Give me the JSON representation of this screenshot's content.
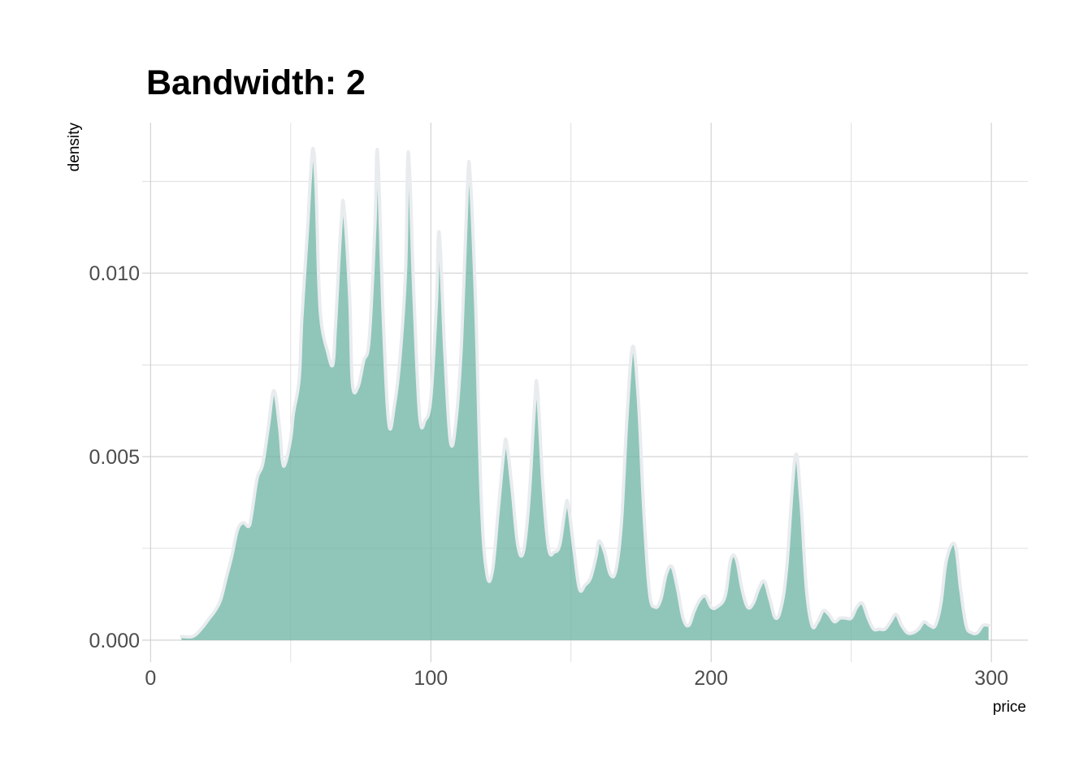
{
  "chart_data": {
    "type": "area",
    "title": "Bandwidth: 2",
    "xlabel": "price",
    "ylabel": "density",
    "xlim": [
      -3,
      313
    ],
    "ylim": [
      -0.0006,
      0.0141
    ],
    "x_ticks": [
      0,
      100,
      200,
      300
    ],
    "x_tick_labels": [
      "0",
      "100",
      "200",
      "300"
    ],
    "y_ticks": [
      0,
      0.005,
      0.01
    ],
    "y_tick_labels": [
      "0.000",
      "0.005",
      "0.010"
    ],
    "grid": true,
    "legend": "none",
    "fill_color": "#69b3a2",
    "line_color": "#e9ecef",
    "series": [
      {
        "x": [
          11,
          15,
          18,
          21,
          23,
          25,
          27,
          29,
          31,
          33,
          35,
          36,
          38,
          40,
          42,
          44,
          46,
          47,
          48,
          50,
          51,
          53,
          54,
          56,
          57,
          58,
          59,
          60,
          61,
          63,
          65,
          66,
          68,
          69,
          71,
          72,
          74,
          76,
          78,
          80,
          81,
          83,
          85,
          87,
          89,
          91,
          92,
          94,
          96,
          98,
          100,
          102,
          103,
          105,
          107,
          109,
          111,
          113,
          114,
          116,
          118,
          120,
          122,
          124,
          126,
          127,
          129,
          131,
          133,
          135,
          137,
          138,
          140,
          142,
          144,
          146,
          148,
          149,
          151,
          153,
          155,
          157,
          159,
          160,
          162,
          164,
          166,
          168,
          170,
          172,
          174,
          176,
          178,
          180,
          182,
          184,
          186,
          188,
          190,
          192,
          194,
          196,
          198,
          200,
          202,
          205,
          207,
          209,
          211,
          213,
          215,
          217,
          219,
          221,
          223,
          225,
          227,
          230,
          232,
          234,
          236,
          238,
          240,
          242,
          244,
          246,
          248,
          250,
          252,
          254,
          256,
          258,
          260,
          262,
          264,
          266,
          268,
          270,
          272,
          274,
          276,
          278,
          280,
          282,
          284,
          287,
          289,
          291,
          293,
          295,
          297,
          299
        ],
        "y": [
          0.0001,
          0.0001,
          0.0003,
          0.0006,
          0.0008,
          0.0011,
          0.0017,
          0.0023,
          0.003,
          0.0032,
          0.0031,
          0.0034,
          0.0044,
          0.0048,
          0.0058,
          0.0068,
          0.0058,
          0.0049,
          0.0048,
          0.0055,
          0.0062,
          0.0071,
          0.0088,
          0.0112,
          0.0126,
          0.0134,
          0.0124,
          0.0098,
          0.0086,
          0.0079,
          0.0075,
          0.0086,
          0.0114,
          0.0118,
          0.0094,
          0.007,
          0.0069,
          0.0076,
          0.0082,
          0.0112,
          0.0133,
          0.0088,
          0.0059,
          0.0064,
          0.0077,
          0.0101,
          0.0133,
          0.0093,
          0.0061,
          0.006,
          0.0066,
          0.0092,
          0.0111,
          0.0078,
          0.0054,
          0.006,
          0.0082,
          0.0123,
          0.0127,
          0.0091,
          0.0038,
          0.0018,
          0.0019,
          0.0035,
          0.0051,
          0.0054,
          0.0041,
          0.0026,
          0.0024,
          0.0038,
          0.0064,
          0.0069,
          0.0042,
          0.0025,
          0.0024,
          0.0026,
          0.0036,
          0.0037,
          0.0025,
          0.0014,
          0.0015,
          0.0017,
          0.0023,
          0.0027,
          0.0024,
          0.0018,
          0.0019,
          0.0032,
          0.0061,
          0.008,
          0.0066,
          0.0035,
          0.0013,
          0.0009,
          0.0011,
          0.0018,
          0.002,
          0.0014,
          0.0006,
          0.0004,
          0.0008,
          0.0011,
          0.0012,
          0.0009,
          0.0009,
          0.0012,
          0.0022,
          0.0022,
          0.0014,
          0.0009,
          0.001,
          0.0014,
          0.0016,
          0.0011,
          0.0006,
          0.0009,
          0.002,
          0.005,
          0.0038,
          0.0014,
          0.0004,
          0.0005,
          0.0008,
          0.0007,
          0.0005,
          0.0006,
          0.0006,
          0.0006,
          0.0009,
          0.001,
          0.0006,
          0.0003,
          0.0003,
          0.0003,
          0.0005,
          0.0007,
          0.0004,
          0.0002,
          0.0002,
          0.0003,
          0.0005,
          0.0004,
          0.0004,
          0.001,
          0.0022,
          0.0026,
          0.0014,
          0.0004,
          0.0002,
          0.0002,
          0.0004,
          0.0004
        ]
      }
    ]
  }
}
